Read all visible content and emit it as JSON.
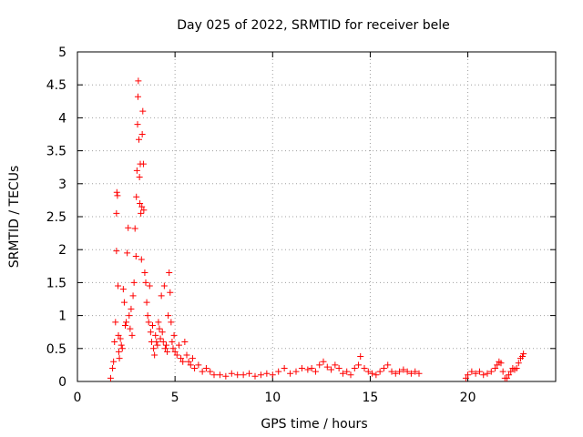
{
  "chart_data": {
    "type": "scatter",
    "title": "Day 025 of 2022, SRMTID for receiver bele",
    "xlabel": "GPS time / hours",
    "ylabel": "SRMTID / TECUs",
    "xlim": [
      0,
      24.5
    ],
    "ylim": [
      0,
      5
    ],
    "xticks": [
      0,
      5,
      10,
      15,
      20
    ],
    "xtick_labels": [
      "0",
      "5",
      "10",
      "15",
      "20"
    ],
    "yticks": [
      0,
      0.5,
      1,
      1.5,
      2,
      2.5,
      3,
      3.5,
      4,
      4.5,
      5
    ],
    "ytick_labels": [
      "0",
      "0.5",
      "1",
      "1.5",
      "2",
      "2.5",
      "3",
      "3.5",
      "4",
      "4.5",
      "5"
    ],
    "grid": true,
    "marker": "+",
    "color": "#ff0000",
    "series": [
      {
        "name": "SRMTID",
        "x": [
          1.7,
          1.8,
          1.85,
          1.9,
          1.95,
          2.0,
          2.0,
          2.02,
          2.05,
          2.08,
          2.1,
          2.12,
          2.15,
          2.2,
          2.25,
          2.3,
          2.35,
          2.4,
          2.45,
          2.5,
          2.55,
          2.6,
          2.65,
          2.7,
          2.75,
          2.8,
          2.85,
          2.9,
          2.95,
          3.0,
          3.02,
          3.05,
          3.08,
          3.1,
          3.12,
          3.15,
          3.18,
          3.2,
          3.22,
          3.25,
          3.28,
          3.3,
          3.32,
          3.35,
          3.38,
          3.4,
          3.45,
          3.5,
          3.55,
          3.6,
          3.65,
          3.7,
          3.75,
          3.8,
          3.85,
          3.9,
          3.95,
          4.0,
          4.05,
          4.1,
          4.15,
          4.2,
          4.25,
          4.3,
          4.35,
          4.4,
          4.45,
          4.5,
          4.55,
          4.6,
          4.65,
          4.7,
          4.75,
          4.8,
          4.85,
          4.9,
          4.95,
          5.0,
          5.1,
          5.2,
          5.3,
          5.4,
          5.5,
          5.6,
          5.7,
          5.8,
          5.9,
          6.0,
          6.2,
          6.4,
          6.6,
          6.8,
          7.0,
          7.3,
          7.6,
          7.9,
          8.2,
          8.5,
          8.8,
          9.1,
          9.4,
          9.7,
          10.0,
          10.3,
          10.6,
          10.9,
          11.2,
          11.5,
          11.8,
          12.0,
          12.2,
          12.4,
          12.6,
          12.8,
          13.0,
          13.2,
          13.4,
          13.6,
          13.8,
          14.0,
          14.2,
          14.4,
          14.5,
          14.7,
          14.9,
          15.1,
          15.3,
          15.5,
          15.7,
          15.9,
          16.1,
          16.3,
          16.5,
          16.7,
          16.9,
          17.1,
          17.3,
          17.5,
          19.9,
          20.0,
          20.2,
          20.4,
          20.6,
          20.8,
          21.0,
          21.2,
          21.4,
          21.5,
          21.6,
          21.7,
          21.8,
          21.9,
          22.0,
          22.1,
          22.2,
          22.3,
          22.4,
          22.5,
          22.6,
          22.7,
          22.8,
          22.85
        ],
        "y": [
          0.05,
          0.2,
          0.3,
          0.6,
          0.9,
          1.98,
          2.55,
          2.87,
          2.82,
          1.45,
          0.7,
          0.45,
          0.35,
          0.65,
          0.55,
          0.5,
          1.4,
          1.2,
          0.85,
          0.9,
          1.95,
          2.33,
          1.0,
          0.8,
          1.1,
          0.7,
          1.3,
          1.5,
          2.32,
          1.9,
          2.8,
          3.2,
          3.9,
          4.32,
          4.56,
          3.67,
          3.1,
          2.7,
          3.3,
          2.55,
          1.85,
          2.65,
          3.75,
          4.1,
          3.3,
          2.6,
          1.65,
          1.5,
          1.2,
          1.0,
          0.9,
          1.45,
          0.75,
          0.6,
          0.85,
          0.5,
          0.4,
          0.7,
          0.6,
          0.55,
          0.9,
          0.8,
          0.65,
          1.3,
          0.75,
          0.6,
          1.45,
          0.5,
          0.55,
          0.45,
          1.0,
          1.65,
          1.35,
          0.9,
          0.6,
          0.5,
          0.7,
          0.45,
          0.4,
          0.55,
          0.35,
          0.3,
          0.6,
          0.4,
          0.3,
          0.25,
          0.35,
          0.2,
          0.25,
          0.15,
          0.2,
          0.15,
          0.1,
          0.1,
          0.08,
          0.12,
          0.1,
          0.1,
          0.12,
          0.08,
          0.1,
          0.12,
          0.1,
          0.15,
          0.2,
          0.12,
          0.15,
          0.2,
          0.18,
          0.2,
          0.15,
          0.25,
          0.3,
          0.22,
          0.18,
          0.25,
          0.2,
          0.12,
          0.15,
          0.1,
          0.2,
          0.25,
          0.38,
          0.2,
          0.15,
          0.12,
          0.1,
          0.15,
          0.2,
          0.25,
          0.15,
          0.12,
          0.15,
          0.18,
          0.15,
          0.12,
          0.15,
          0.12,
          0.05,
          0.1,
          0.15,
          0.12,
          0.15,
          0.1,
          0.12,
          0.15,
          0.2,
          0.25,
          0.3,
          0.28,
          0.15,
          0.05,
          0.05,
          0.1,
          0.15,
          0.2,
          0.18,
          0.2,
          0.28,
          0.35,
          0.38,
          0.42
        ]
      }
    ]
  }
}
